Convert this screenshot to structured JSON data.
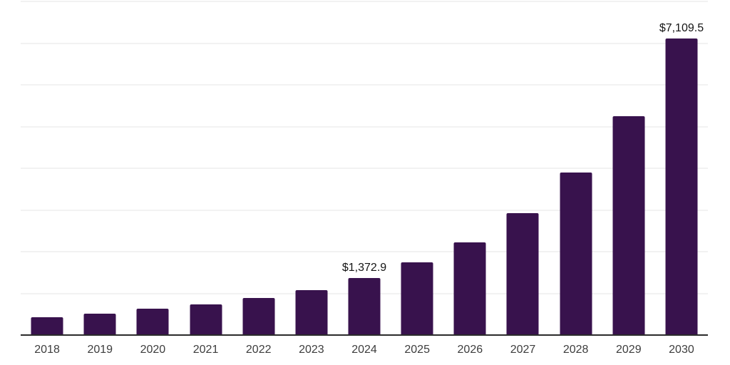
{
  "chart": {
    "background_color": "#ffffff",
    "bar_color": "#38124d",
    "gridline_color": "#f2f2f2",
    "axis_line_color": "#2b2b2b",
    "tick_label_color": "#3d3d3d",
    "value_label_color": "#141414"
  },
  "chart_data": {
    "type": "bar",
    "title": "",
    "xlabel": "",
    "ylabel": "",
    "categories": [
      "2018",
      "2019",
      "2020",
      "2021",
      "2022",
      "2023",
      "2024",
      "2025",
      "2026",
      "2027",
      "2028",
      "2029",
      "2030"
    ],
    "values": [
      425,
      515,
      630,
      735,
      890,
      1080,
      1372.9,
      1740,
      2230,
      2920,
      3890,
      5240,
      7109.5
    ],
    "value_labels": [
      "",
      "",
      "",
      "",
      "",
      "",
      "$1,372.9",
      "",
      "",
      "",
      "",
      "",
      "$7,109.5"
    ],
    "ylim": [
      0,
      8000
    ],
    "gridline_step": 1000,
    "grid": true,
    "legend": false,
    "legend_position": "none"
  }
}
